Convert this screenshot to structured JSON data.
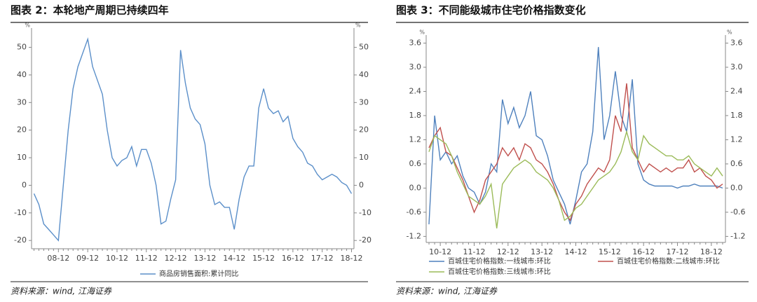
{
  "chart_data": [
    {
      "type": "line",
      "title": "图表 2：本轮地产周期已持续四年",
      "source": "资料来源：wind, 江海证券",
      "y_unit": "%",
      "categories": [
        null,
        null,
        null,
        null,
        null,
        "08-12",
        null,
        null,
        null,
        null,
        null,
        "09-12",
        null,
        null,
        null,
        null,
        null,
        "10-12",
        null,
        null,
        null,
        null,
        null,
        "11-12",
        null,
        null,
        null,
        null,
        null,
        "12-12",
        null,
        null,
        null,
        null,
        null,
        "13-12",
        null,
        null,
        null,
        null,
        null,
        "14-12",
        null,
        null,
        null,
        null,
        null,
        "15-12",
        null,
        null,
        null,
        null,
        null,
        "16-12",
        null,
        null,
        null,
        null,
        null,
        "17-12",
        null,
        null,
        null,
        null,
        null,
        "18-12"
      ],
      "series": [
        {
          "name": "商品房销售面积:累计同比",
          "color": "#5b8fc9",
          "values": [
            -3,
            -7,
            -14,
            -16,
            -18,
            -20,
            0,
            20,
            35,
            43,
            48,
            53,
            43,
            38,
            33,
            20,
            10,
            7,
            9,
            10,
            14,
            7,
            13,
            13,
            8,
            0,
            -14,
            -13,
            -5,
            2,
            49,
            37,
            28,
            24,
            22,
            15,
            0,
            -7,
            -6,
            -8,
            -8,
            -16,
            -5,
            3,
            7,
            7,
            28,
            35,
            28,
            26,
            27,
            23,
            25,
            17,
            14,
            12,
            8,
            7,
            4,
            2,
            3,
            4,
            3,
            1,
            0,
            -3
          ]
        }
      ],
      "ylim": [
        -23,
        57
      ],
      "yticks": [
        -20,
        -10,
        0,
        10,
        20,
        30,
        40,
        50
      ],
      "legend": "bottom",
      "grid": false
    },
    {
      "type": "line",
      "title": "图表 3：不同能级城市住宅价格指数变化",
      "source": "资料来源：wind, 江海证券",
      "y_unit": "%",
      "categories": [
        null,
        null,
        "10-12",
        null,
        null,
        null,
        null,
        null,
        "11-12",
        null,
        null,
        null,
        null,
        null,
        "12-12",
        null,
        null,
        null,
        null,
        null,
        "13-12",
        null,
        null,
        null,
        null,
        null,
        "14-12",
        null,
        null,
        null,
        null,
        null,
        "15-12",
        null,
        null,
        null,
        null,
        null,
        "16-12",
        null,
        null,
        null,
        null,
        null,
        "17-12",
        null,
        null,
        null,
        null,
        null,
        "18-12",
        null,
        null
      ],
      "series": [
        {
          "name": "百城住宅价格指数:一线城市:环比",
          "color": "#4f81bd",
          "values": [
            -0.9,
            1.8,
            0.7,
            0.9,
            0.6,
            0.8,
            0.3,
            0.0,
            -0.1,
            -0.4,
            -0.1,
            0.6,
            0.4,
            2.2,
            1.6,
            2.0,
            1.5,
            1.8,
            2.4,
            1.3,
            1.2,
            0.8,
            0.2,
            -0.1,
            -0.4,
            -0.9,
            -0.3,
            0.4,
            0.6,
            1.4,
            3.5,
            1.2,
            1.8,
            2.9,
            1.8,
            1.4,
            2.7,
            0.6,
            0.2,
            0.1,
            0.05,
            0.05,
            0.05,
            0.05,
            0.0,
            0.05,
            0.05,
            0.1,
            0.05,
            0.05,
            0.05,
            0.05,
            0.0
          ]
        },
        {
          "name": "百城住宅价格指数:二线城市:环比",
          "color": "#c0504d",
          "values": [
            1.0,
            1.3,
            1.5,
            0.9,
            0.8,
            0.5,
            0.2,
            -0.2,
            -0.6,
            -0.3,
            0.2,
            0.4,
            0.6,
            1.0,
            0.8,
            1.0,
            0.7,
            1.1,
            1.0,
            0.7,
            0.6,
            0.4,
            0.1,
            -0.3,
            -0.6,
            -0.8,
            -0.4,
            -0.2,
            0.1,
            0.3,
            0.5,
            0.4,
            0.7,
            1.8,
            1.4,
            2.6,
            1.0,
            0.7,
            0.4,
            0.6,
            0.5,
            0.4,
            0.5,
            0.4,
            0.5,
            0.5,
            0.7,
            0.4,
            0.5,
            0.3,
            0.2,
            0.0,
            0.1
          ]
        },
        {
          "name": "百城住宅价格指数:三线城市:环比",
          "color": "#9bbb59",
          "values": [
            0.9,
            1.3,
            1.2,
            1.1,
            0.8,
            0.4,
            0.1,
            -0.2,
            -0.3,
            -0.4,
            -0.2,
            0.1,
            -1.0,
            0.1,
            0.3,
            0.5,
            0.6,
            0.7,
            0.6,
            0.4,
            0.3,
            0.2,
            0.0,
            -0.3,
            -0.8,
            -0.7,
            -0.5,
            -0.4,
            -0.2,
            0.0,
            0.2,
            0.3,
            0.4,
            0.6,
            0.9,
            1.4,
            0.9,
            0.7,
            1.3,
            1.1,
            1.0,
            0.9,
            0.8,
            0.8,
            0.7,
            0.7,
            0.8,
            0.6,
            0.5,
            0.4,
            0.3,
            0.5,
            0.3
          ]
        }
      ],
      "ylim": [
        -1.35,
        3.8
      ],
      "yticks": [
        -1.2,
        -0.6,
        {
          "value": 0,
          "label": "0.0"
        },
        0.6,
        1.2,
        1.8,
        2.4,
        {
          "value": 3,
          "label": "3.0"
        },
        3.6
      ],
      "legend": "bottom",
      "grid": false
    }
  ]
}
